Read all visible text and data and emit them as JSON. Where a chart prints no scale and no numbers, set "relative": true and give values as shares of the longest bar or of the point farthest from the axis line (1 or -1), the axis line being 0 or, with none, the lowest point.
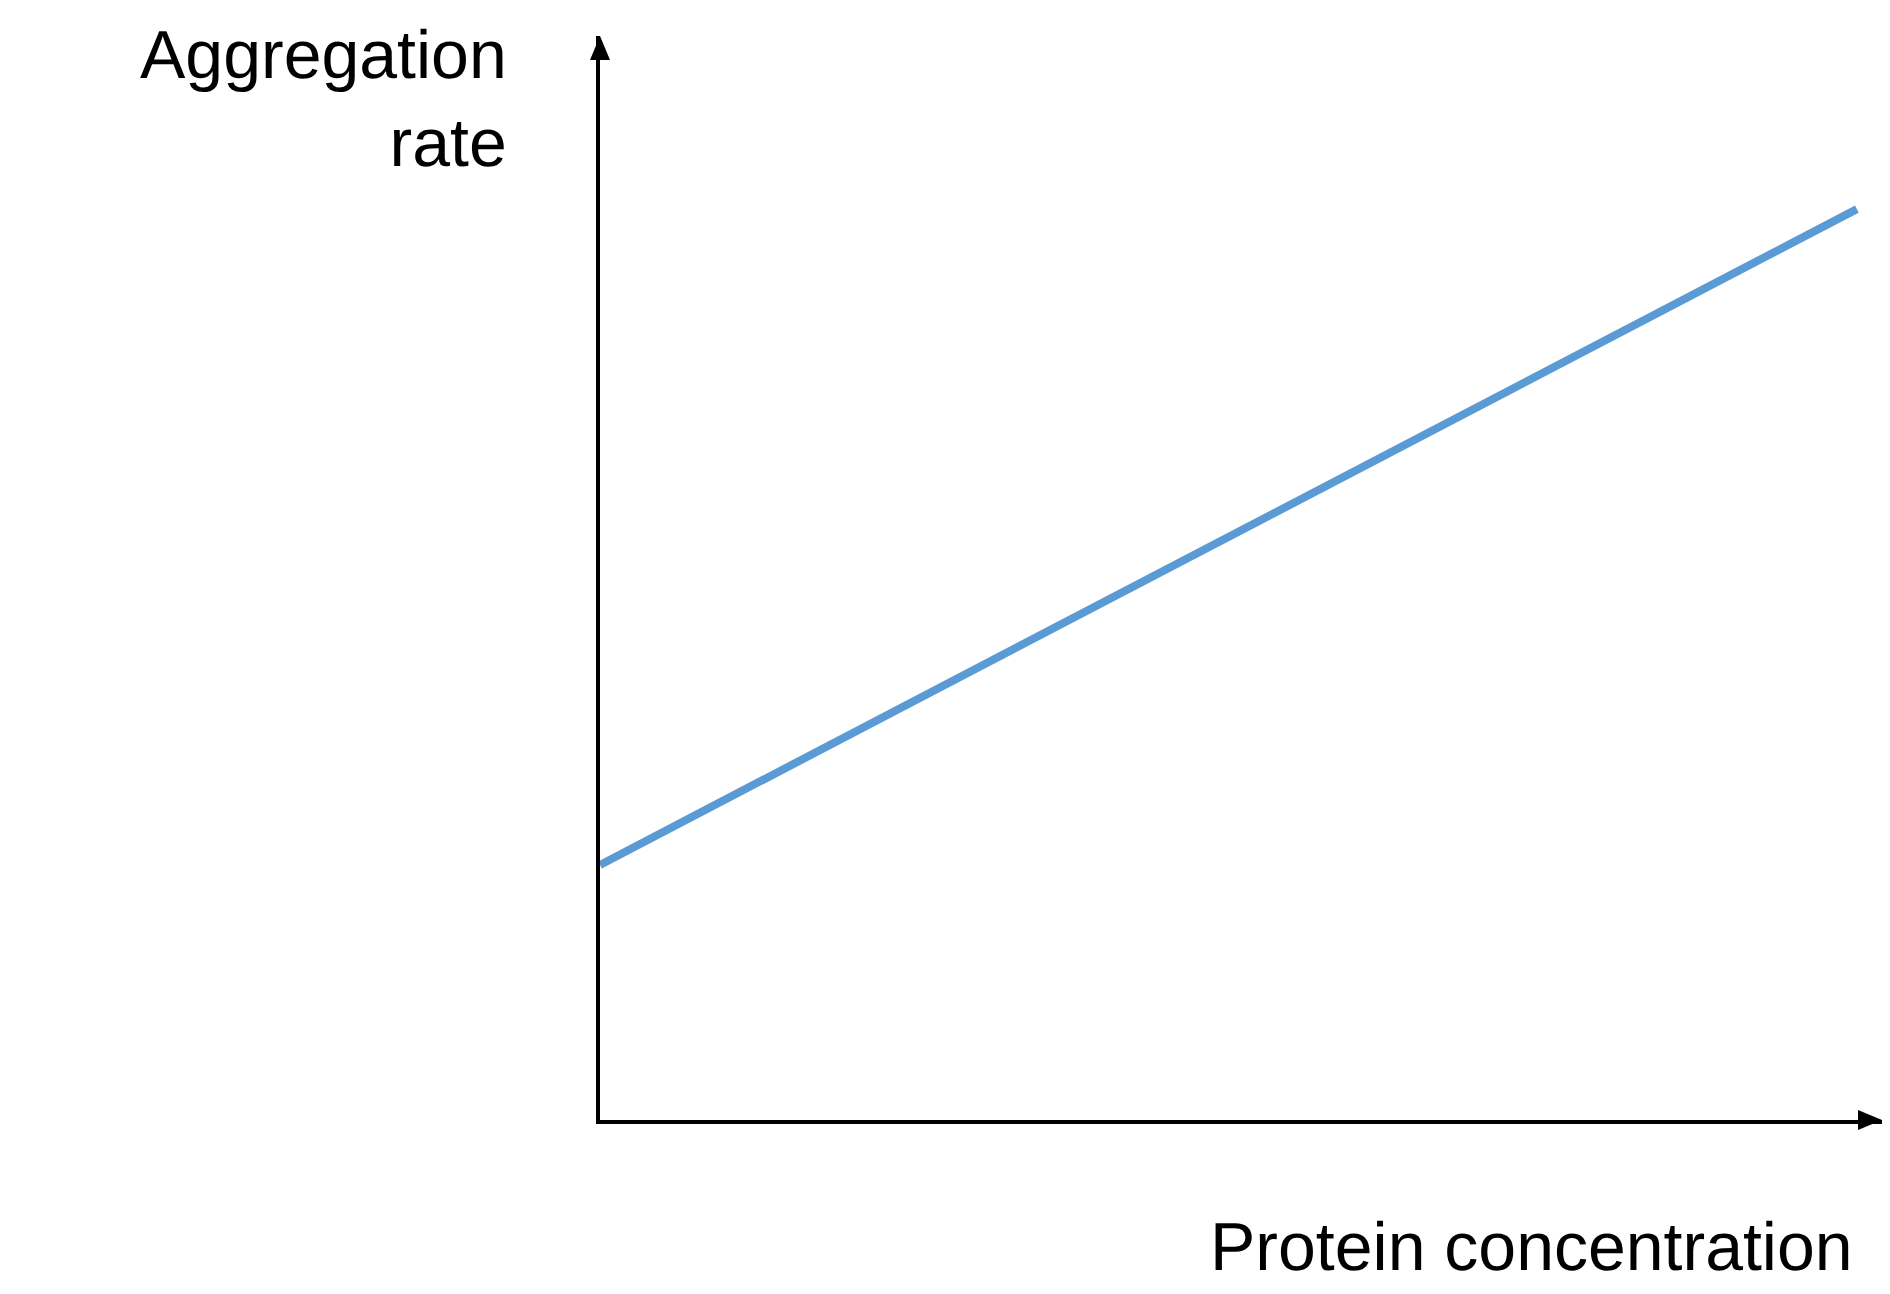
{
  "chart_data": {
    "type": "line",
    "xlabel": "Protein concentration",
    "ylabel": "Aggregation rate",
    "relative": true,
    "categories": [
      null,
      null
    ],
    "series": [
      {
        "color": "#5b9bd5",
        "values": [
          0.28,
          1
        ]
      }
    ]
  }
}
